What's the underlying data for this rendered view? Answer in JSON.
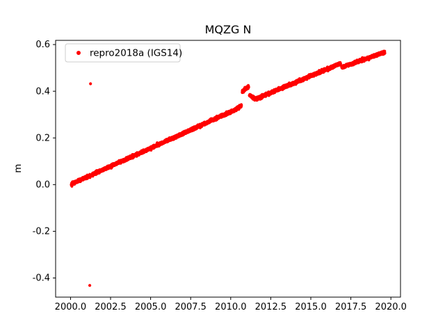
{
  "chart_data": {
    "type": "scatter",
    "title": "MQZG N",
    "xlabel": "",
    "ylabel": "m",
    "legend": [
      "repro2018a (IGS14)"
    ],
    "legend_position": "upper left",
    "marker": "dot",
    "marker_color": "#ff0000",
    "marker_radius_px": 2.1,
    "grid": false,
    "xlim": [
      1999.07,
      2020.6
    ],
    "ylim": [
      -0.482,
      0.618
    ],
    "xticks": [
      2000.0,
      2002.5,
      2005.0,
      2007.5,
      2010.0,
      2012.5,
      2015.0,
      2017.5,
      2020.0
    ],
    "xtick_labels": [
      "2000.0",
      "2002.5",
      "2005.0",
      "2007.5",
      "2010.0",
      "2012.5",
      "2015.0",
      "2017.5",
      "2020.0"
    ],
    "yticks": [
      -0.4,
      -0.2,
      0.0,
      0.2,
      0.4,
      0.6
    ],
    "ytick_labels": [
      "-0.4",
      "-0.2",
      "0.0",
      "0.2",
      "0.4",
      "0.6"
    ],
    "series_description": "Dense daily GPS position time series (north component, metres) rising nearly linearly from 0.0 m in 2000 to about 0.57 m in late 2019, with coseismic offsets near 2010.7 and 2011.2 and a small step near 2016.9",
    "trend_segments": [
      {
        "x_start": 2000.05,
        "x_end": 2010.2,
        "y_start": 0.002,
        "y_end": 0.318
      },
      {
        "x_start": 2010.2,
        "x_end": 2010.67,
        "y_start": 0.318,
        "y_end": 0.338
      },
      {
        "x_start": 2010.72,
        "x_end": 2011.12,
        "y_start": 0.398,
        "y_end": 0.421
      },
      {
        "x_start": 2011.17,
        "x_end": 2011.55,
        "y_start": 0.383,
        "y_end": 0.366
      },
      {
        "x_start": 2011.55,
        "x_end": 2016.86,
        "y_start": 0.366,
        "y_end": 0.519
      },
      {
        "x_start": 2016.93,
        "x_end": 2019.62,
        "y_start": 0.502,
        "y_end": 0.568
      }
    ],
    "noise_std_m": 0.003,
    "sample_step_years": 0.004,
    "outliers": [
      {
        "x": 2001.25,
        "y": 0.432
      },
      {
        "x": 2001.2,
        "y": -0.432
      }
    ]
  }
}
